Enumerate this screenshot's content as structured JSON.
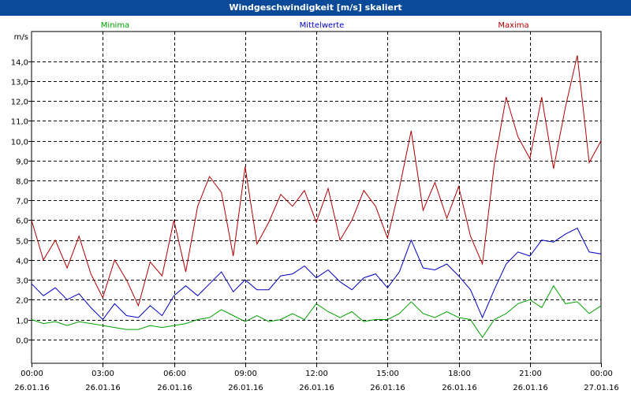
{
  "window": {
    "title": "Windgeschwindigkeit [m/s] skaliert"
  },
  "chart_data": {
    "type": "line",
    "title": "Windgeschwindigkeit [m/s] skaliert",
    "ylabel": "m/s",
    "ylim": [
      -1.2,
      15.5
    ],
    "xlim": [
      0,
      24
    ],
    "grid": true,
    "yticks": [
      "0,0",
      "1,0",
      "2,0",
      "3,0",
      "4,0",
      "5,0",
      "6,0",
      "7,0",
      "8,0",
      "9,0",
      "10,0",
      "11,0",
      "12,0",
      "13,0",
      "14,0"
    ],
    "ytick_values": [
      0,
      1,
      2,
      3,
      4,
      5,
      6,
      7,
      8,
      9,
      10,
      11,
      12,
      13,
      14
    ],
    "xticks": [
      {
        "time": "00:00",
        "date": "26.01.16",
        "hour": 0
      },
      {
        "time": "03:00",
        "date": "26.01.16",
        "hour": 3
      },
      {
        "time": "06:00",
        "date": "26.01.16",
        "hour": 6
      },
      {
        "time": "09:00",
        "date": "26.01.16",
        "hour": 9
      },
      {
        "time": "12:00",
        "date": "26.01.16",
        "hour": 12
      },
      {
        "time": "15:00",
        "date": "26.01.16",
        "hour": 15
      },
      {
        "time": "18:00",
        "date": "26.01.16",
        "hour": 18
      },
      {
        "time": "21:00",
        "date": "26.01.16",
        "hour": 21
      },
      {
        "time": "00:00",
        "date": "27.01.16",
        "hour": 24
      }
    ],
    "series": [
      {
        "name": "Minima",
        "color": "#00a000",
        "legend_position": "left",
        "x": [
          0,
          0.5,
          1,
          1.5,
          2,
          2.5,
          3,
          3.5,
          4,
          4.5,
          5,
          5.5,
          6,
          6.5,
          7,
          7.5,
          8,
          8.5,
          9,
          9.5,
          10,
          10.5,
          11,
          11.5,
          12,
          12.5,
          13,
          13.5,
          14,
          14.5,
          15,
          15.5,
          16,
          16.5,
          17,
          17.5,
          18,
          18.5,
          19,
          19.5,
          20,
          20.5,
          21,
          21.5,
          22,
          22.5,
          23,
          23.5,
          24
        ],
        "values": [
          1.0,
          0.8,
          0.9,
          0.7,
          0.9,
          0.8,
          0.7,
          0.6,
          0.5,
          0.5,
          0.7,
          0.6,
          0.7,
          0.8,
          1.0,
          1.1,
          1.5,
          1.2,
          0.9,
          1.2,
          0.9,
          1.0,
          1.3,
          1.0,
          1.8,
          1.4,
          1.1,
          1.4,
          0.9,
          1.0,
          1.0,
          1.3,
          1.9,
          1.3,
          1.1,
          1.4,
          1.1,
          1.0,
          0.1,
          1.0,
          1.3,
          1.8,
          2.0,
          1.6,
          2.7,
          1.8,
          1.9,
          1.3,
          1.7
        ]
      },
      {
        "name": "Mittelwerte",
        "color": "#0000c0",
        "legend_position": "center",
        "x": [
          0,
          0.5,
          1,
          1.5,
          2,
          2.5,
          3,
          3.5,
          4,
          4.5,
          5,
          5.5,
          6,
          6.5,
          7,
          7.5,
          8,
          8.5,
          9,
          9.5,
          10,
          10.5,
          11,
          11.5,
          12,
          12.5,
          13,
          13.5,
          14,
          14.5,
          15,
          15.5,
          16,
          16.5,
          17,
          17.5,
          18,
          18.5,
          19,
          19.5,
          20,
          20.5,
          21,
          21.5,
          22,
          22.5,
          23,
          23.5,
          24
        ],
        "values": [
          2.8,
          2.2,
          2.6,
          2.0,
          2.3,
          1.6,
          1.0,
          1.8,
          1.2,
          1.1,
          1.7,
          1.2,
          2.2,
          2.7,
          2.2,
          2.8,
          3.4,
          2.4,
          3.0,
          2.5,
          2.5,
          3.2,
          3.3,
          3.7,
          3.1,
          3.5,
          2.9,
          2.5,
          3.1,
          3.3,
          2.6,
          3.4,
          5.0,
          3.6,
          3.5,
          3.8,
          3.2,
          2.5,
          1.1,
          2.5,
          3.8,
          4.4,
          4.2,
          5.0,
          4.9,
          5.3,
          5.6,
          4.4,
          4.3
        ]
      },
      {
        "name": "Maxima",
        "color": "#b00000",
        "legend_position": "right",
        "x": [
          0,
          0.5,
          1,
          1.5,
          2,
          2.5,
          3,
          3.5,
          4,
          4.5,
          5,
          5.5,
          6,
          6.5,
          7,
          7.5,
          8,
          8.5,
          9,
          9.5,
          10,
          10.5,
          11,
          11.5,
          12,
          12.5,
          13,
          13.5,
          14,
          14.5,
          15,
          15.5,
          16,
          16.5,
          17,
          17.5,
          18,
          18.5,
          19,
          19.5,
          20,
          20.5,
          21,
          21.5,
          22,
          22.5,
          23,
          23.5,
          24
        ],
        "values": [
          6.0,
          4.0,
          5.0,
          3.6,
          5.2,
          3.3,
          2.1,
          4.0,
          3.0,
          1.7,
          3.9,
          3.2,
          6.0,
          3.4,
          6.7,
          8.2,
          7.4,
          4.2,
          8.7,
          4.8,
          5.9,
          7.3,
          6.7,
          7.5,
          5.9,
          7.6,
          5.0,
          6.0,
          7.5,
          6.7,
          5.1,
          7.6,
          10.5,
          6.5,
          7.9,
          6.1,
          7.7,
          5.2,
          3.8,
          8.8,
          12.2,
          10.2,
          9.1,
          12.2,
          8.6,
          11.7,
          14.3,
          8.9,
          10.0
        ]
      }
    ]
  }
}
